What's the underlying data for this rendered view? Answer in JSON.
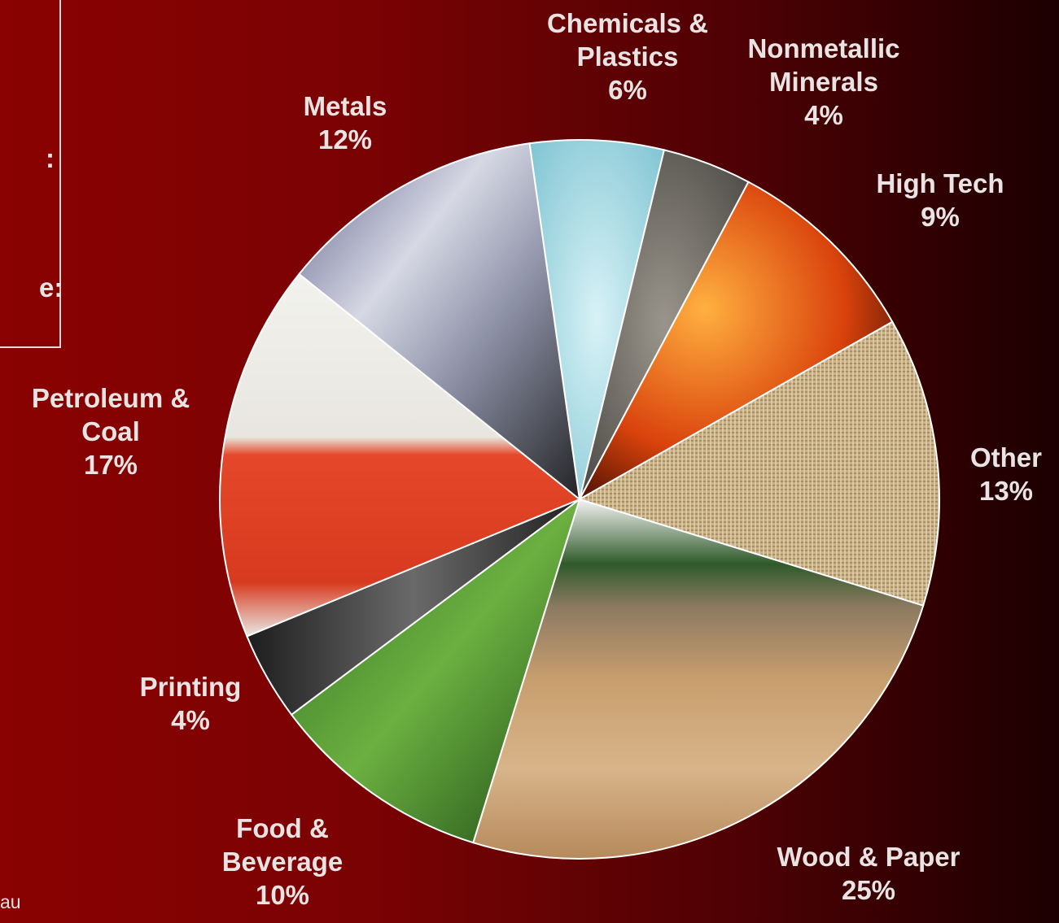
{
  "side_panel": {
    "line1": ":",
    "line2": "e:",
    "source_fragment": "au"
  },
  "chart_data": {
    "type": "pie",
    "slices": [
      {
        "name": "Chemicals & Plastics",
        "label_lines": [
          "Chemicals &",
          "Plastics"
        ],
        "pct_label": "6%",
        "value": 6,
        "texture": "water-droplets",
        "color": "#a9dde6"
      },
      {
        "name": "Nonmetallic Minerals",
        "label_lines": [
          "Nonmetallic",
          "Minerals"
        ],
        "pct_label": "4%",
        "value": 4,
        "texture": "pebbles",
        "color": "#7e7b74"
      },
      {
        "name": "High Tech",
        "label_lines": [
          "High Tech"
        ],
        "pct_label": "9%",
        "value": 9,
        "texture": "silicon-wafer",
        "color": "#e8620f"
      },
      {
        "name": "Other",
        "label_lines": [
          "Other"
        ],
        "pct_label": "13%",
        "value": 13,
        "texture": "burlap",
        "color": "#c9b38a"
      },
      {
        "name": "Wood & Paper",
        "label_lines": [
          "Wood & Paper"
        ],
        "pct_label": "25%",
        "value": 25,
        "texture": "logs",
        "color": "#caa47a"
      },
      {
        "name": "Food & Beverage",
        "label_lines": [
          "Food &",
          "Beverage"
        ],
        "pct_label": "10%",
        "value": 10,
        "texture": "wheat-grass",
        "color": "#3f8a2a"
      },
      {
        "name": "Printing",
        "label_lines": [
          "Printing"
        ],
        "pct_label": "4%",
        "value": 4,
        "texture": "typewriter-keys",
        "color": "#3a3a3a"
      },
      {
        "name": "Petroleum & Coal",
        "label_lines": [
          "Petroleum &",
          "Coal"
        ],
        "pct_label": "17%",
        "value": 17,
        "texture": "gas-pump",
        "color": "#e24a2a"
      },
      {
        "name": "Metals",
        "label_lines": [
          "Metals"
        ],
        "pct_label": "12%",
        "value": 12,
        "texture": "corrugated-pipe",
        "color": "#9da1b8"
      }
    ]
  }
}
